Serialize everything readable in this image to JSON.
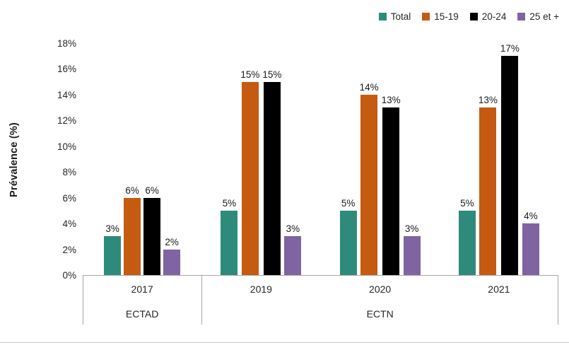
{
  "chart_data": {
    "type": "bar",
    "title": "",
    "xlabel": "",
    "ylabel": "Prévalence (%)",
    "ylim": [
      0,
      18
    ],
    "ytick_step": 2,
    "ytick_labels": [
      "0%",
      "2%",
      "4%",
      "6%",
      "8%",
      "10%",
      "12%",
      "14%",
      "16%",
      "18%"
    ],
    "categories": [
      "2017",
      "2019",
      "2020",
      "2021"
    ],
    "category_groups": [
      {
        "label": "ECTAD",
        "start": 0,
        "end": 0
      },
      {
        "label": "ECTN",
        "start": 1,
        "end": 3
      }
    ],
    "series": [
      {
        "name": "Total",
        "color": "#2E8B7B",
        "values": [
          3,
          5,
          5,
          5
        ]
      },
      {
        "name": "15-19",
        "color": "#C55A11",
        "values": [
          6,
          15,
          14,
          13
        ]
      },
      {
        "name": "20-24",
        "color": "#000000",
        "values": [
          6,
          15,
          13,
          17
        ]
      },
      {
        "name": "25 et +",
        "color": "#8064A2",
        "values": [
          2,
          3,
          3,
          4
        ]
      }
    ],
    "data_label_format": "{v}%",
    "legend_position": "top-right",
    "grid": false
  },
  "colors": {
    "axis_line": "#A6A6A6",
    "text": "#262626",
    "page_bottom_line": "#C9C9C9"
  }
}
